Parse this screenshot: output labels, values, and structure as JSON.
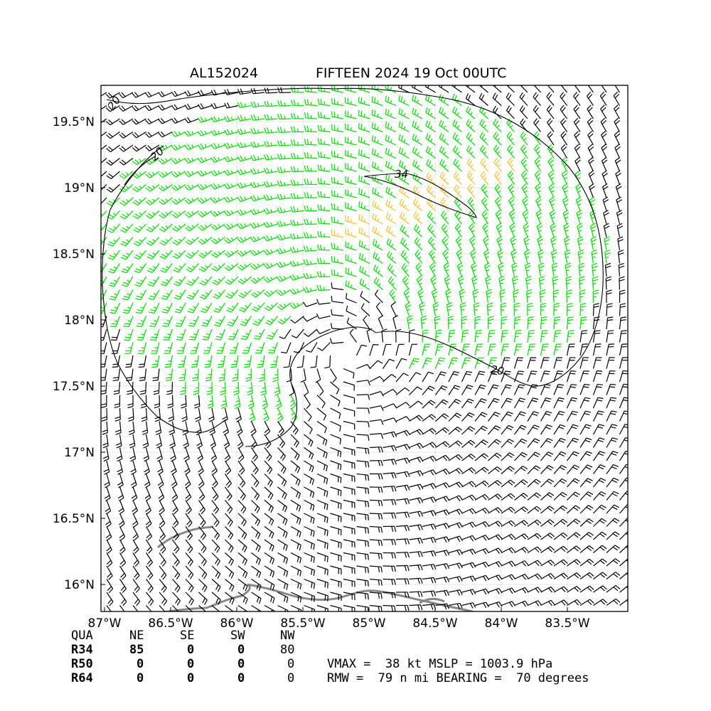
{
  "title": {
    "storm_id": "AL152024",
    "storm_label": "FIFTEEN 2024 19 Oct 00UTC"
  },
  "map": {
    "lon_range": [
      -87.0,
      -83.0
    ],
    "lat_range": [
      15.8,
      19.8
    ],
    "lon_ticks": [
      {
        "value": -87.0,
        "label": "87°W"
      },
      {
        "value": -86.5,
        "label": "86.5°W"
      },
      {
        "value": -86.0,
        "label": "86°W"
      },
      {
        "value": -85.5,
        "label": "85.5°W"
      },
      {
        "value": -85.0,
        "label": "85°W"
      },
      {
        "value": -84.5,
        "label": "84.5°W"
      },
      {
        "value": -84.0,
        "label": "84°W"
      },
      {
        "value": -83.5,
        "label": "83.5°W"
      }
    ],
    "lat_ticks": [
      {
        "value": 16.0,
        "label": "16°N"
      },
      {
        "value": 16.5,
        "label": "16.5°N"
      },
      {
        "value": 17.0,
        "label": "17°N"
      },
      {
        "value": 17.5,
        "label": "17.5°N"
      },
      {
        "value": 18.0,
        "label": "18°N"
      },
      {
        "value": 18.5,
        "label": "18.5°N"
      },
      {
        "value": 19.0,
        "label": "19°N"
      },
      {
        "value": 19.5,
        "label": "19.5°N"
      }
    ],
    "storm_center": {
      "lon": -85.17,
      "lat": 17.75
    },
    "contours": [
      {
        "level": "20",
        "label": "20"
      },
      {
        "level": "34",
        "label": "34"
      }
    ],
    "barb_colors": {
      "below_34kt": "#000000",
      "gale_34_50kt": "#00dd00",
      "above_34_zone": "#f2c12e"
    },
    "coastline_color": "#888888"
  },
  "wind_radii_table": {
    "headers": [
      "QUA",
      "NE",
      "SE",
      "SW",
      "NW"
    ],
    "rows": [
      {
        "label": "R34",
        "values": [
          "85",
          "0",
          "0",
          "80"
        ]
      },
      {
        "label": "R50",
        "values": [
          "0",
          "0",
          "0",
          "0"
        ]
      },
      {
        "label": "R64",
        "values": [
          "0",
          "0",
          "0",
          "0"
        ]
      }
    ]
  },
  "stats": {
    "line1": "VMAX =  38 kt MSLP = 1003.9 hPa",
    "line2": "RMW =  79 n mi BEARING =  70 degrees"
  }
}
